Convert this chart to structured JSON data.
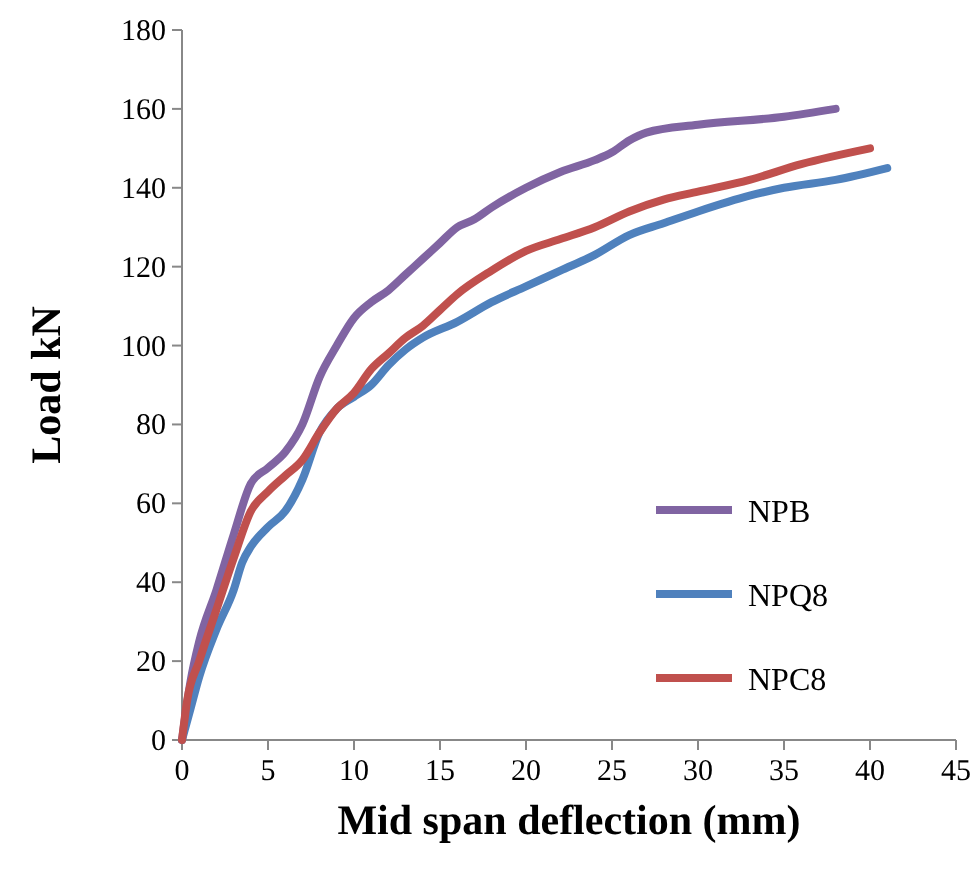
{
  "chart_data": {
    "type": "line",
    "xlabel": "Mid span deflection (mm)",
    "ylabel": "Load kN",
    "xlim": [
      0,
      45
    ],
    "xticks": [
      0,
      5,
      10,
      15,
      20,
      25,
      30,
      35,
      40,
      45
    ],
    "ylim": [
      0,
      180
    ],
    "yticks": [
      0,
      20,
      40,
      60,
      80,
      100,
      120,
      140,
      160,
      180
    ],
    "grid": false,
    "legend": "right",
    "marker": "none",
    "line_style": "solid",
    "series": [
      {
        "name": "NPB",
        "color": "#8064a2",
        "x": [
          0,
          0.5,
          1,
          2,
          3,
          4,
          5,
          6,
          7,
          8,
          9,
          10,
          11,
          12,
          13,
          14,
          15,
          16,
          17,
          18,
          20,
          22,
          24,
          25,
          26,
          27,
          30,
          35,
          38
        ],
        "values": [
          0,
          15,
          25,
          38,
          52,
          65,
          69,
          73,
          80,
          92,
          100,
          107,
          111,
          114,
          118,
          122,
          126,
          130,
          132,
          135,
          140,
          144,
          147,
          149,
          152,
          154,
          156,
          158,
          160
        ]
      },
      {
        "name": "NPQ8",
        "color": "#4f81bd",
        "x": [
          0,
          0.5,
          1,
          2,
          3,
          3.5,
          4,
          5,
          6,
          7,
          8,
          9,
          10,
          11,
          12,
          13,
          14,
          16,
          18,
          20,
          22,
          24,
          26,
          28,
          30,
          33,
          35,
          38,
          41
        ],
        "values": [
          0,
          8,
          16,
          28,
          38,
          45,
          49,
          54,
          58,
          66,
          78,
          84,
          87,
          90,
          95,
          99,
          102,
          106,
          111,
          115,
          119,
          123,
          128,
          131,
          134,
          138,
          140,
          142,
          145
        ]
      },
      {
        "name": "NPC8",
        "color": "#c0504d",
        "x": [
          0,
          0.3,
          1,
          2,
          3,
          4,
          5,
          6,
          7,
          8,
          9,
          10,
          11,
          12,
          13,
          14,
          15,
          16,
          18,
          20,
          22,
          24,
          26,
          28,
          30,
          33,
          36,
          40
        ],
        "values": [
          0,
          10,
          20,
          33,
          46,
          58,
          63,
          67,
          71,
          78,
          84,
          88,
          94,
          98,
          102,
          105,
          109,
          113,
          119,
          124,
          127,
          130,
          134,
          137,
          139,
          142,
          146,
          150
        ]
      }
    ]
  }
}
